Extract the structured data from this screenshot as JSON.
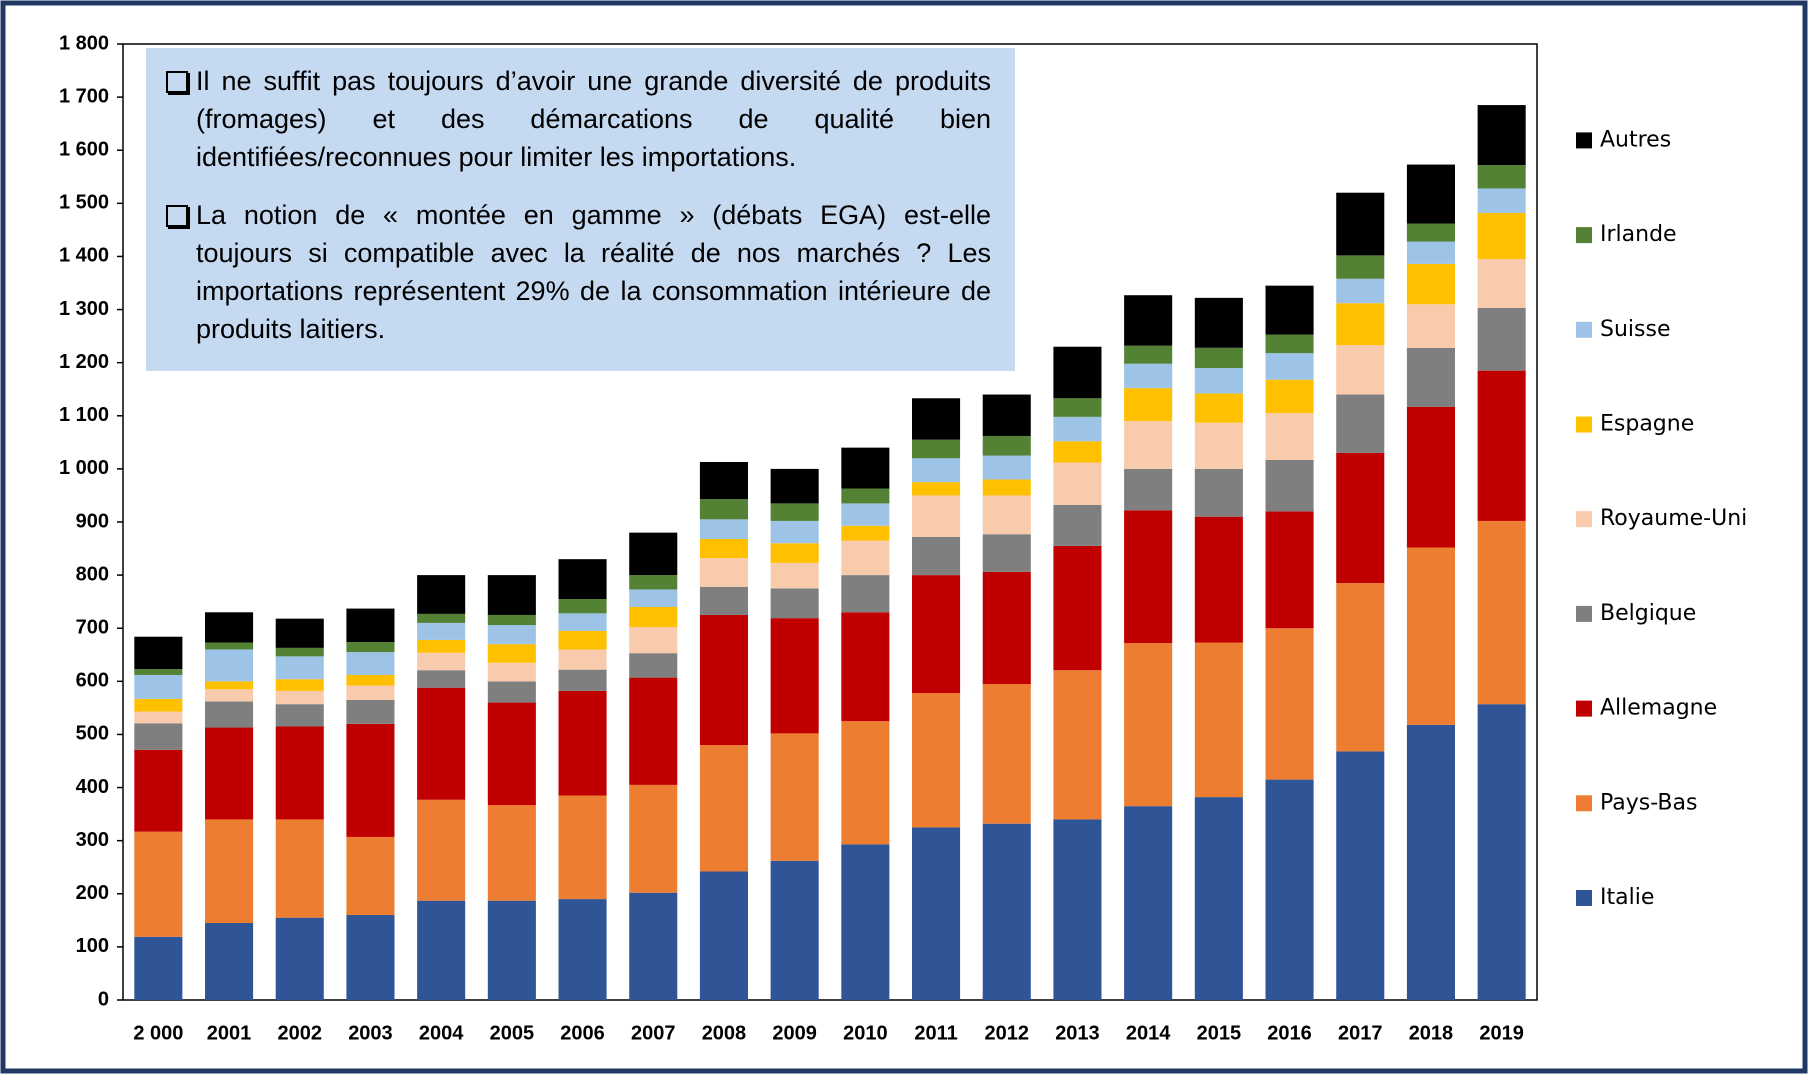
{
  "chart_data": {
    "type": "stacked-bar",
    "annotations": [
      "Il ne suffit pas toujours d’avoir une grande diversité de produits (fromages) et des démarcations de qualité bien identifiées/reconnues pour limiter les importations.",
      "La notion de « montée en gamme » (débats EGA) est-elle toujours si compatible avec la réalité de nos marchés ? Les importations représentent 29% de la consommation intérieure de produits laitiers."
    ],
    "categories": [
      "2 000",
      "2001",
      "2002",
      "2003",
      "2004",
      "2005",
      "2006",
      "2007",
      "2008",
      "2009",
      "2010",
      "2011",
      "2012",
      "2013",
      "2014",
      "2015",
      "2016",
      "2017",
      "2018",
      "2019"
    ],
    "series": [
      {
        "name": "Italie",
        "color": "#2f5597",
        "values": [
          119,
          145,
          155,
          160,
          187,
          187,
          190,
          202,
          242,
          262,
          293,
          325,
          332,
          340,
          365,
          382,
          415,
          468,
          518,
          557
        ]
      },
      {
        "name": "Pays-Bas",
        "color": "#ed7d31",
        "values": [
          198,
          195,
          185,
          147,
          190,
          180,
          195,
          203,
          238,
          240,
          232,
          253,
          263,
          281,
          307,
          291,
          285,
          317,
          334,
          345
        ]
      },
      {
        "name": "Allemagne",
        "color": "#c00000",
        "values": [
          154,
          173,
          175,
          213,
          211,
          193,
          197,
          202,
          245,
          217,
          205,
          222,
          211,
          234,
          250,
          237,
          220,
          245,
          265,
          283
        ]
      },
      {
        "name": "Belgique",
        "color": "#7f7f7f",
        "values": [
          50,
          49,
          42,
          45,
          33,
          40,
          40,
          46,
          53,
          56,
          70,
          72,
          71,
          77,
          78,
          90,
          97,
          110,
          111,
          118
        ]
      },
      {
        "name": "Royaume-Uni",
        "color": "#f8cbad",
        "values": [
          22,
          23,
          25,
          27,
          33,
          35,
          38,
          49,
          54,
          48,
          65,
          78,
          73,
          80,
          90,
          87,
          88,
          93,
          82,
          92
        ]
      },
      {
        "name": "Espagne",
        "color": "#ffc000",
        "values": [
          24,
          15,
          22,
          20,
          24,
          35,
          35,
          38,
          36,
          37,
          28,
          25,
          30,
          40,
          62,
          55,
          63,
          79,
          76,
          87
        ]
      },
      {
        "name": "Suisse",
        "color": "#9dc3e6",
        "values": [
          45,
          60,
          43,
          43,
          32,
          36,
          33,
          33,
          37,
          42,
          42,
          45,
          45,
          46,
          46,
          48,
          50,
          46,
          42,
          46
        ]
      },
      {
        "name": "Irlande",
        "color": "#548235",
        "values": [
          11,
          13,
          16,
          19,
          17,
          19,
          27,
          27,
          38,
          33,
          28,
          35,
          37,
          35,
          34,
          38,
          35,
          44,
          34,
          44
        ]
      },
      {
        "name": "Autres",
        "color": "#000000",
        "values": [
          61,
          57,
          55,
          63,
          73,
          75,
          75,
          80,
          70,
          65,
          77,
          78,
          78,
          97,
          95,
          94,
          92,
          118,
          111,
          113
        ]
      }
    ],
    "ylim": [
      0,
      1800
    ],
    "yticks": [
      0,
      100,
      200,
      300,
      400,
      500,
      600,
      700,
      800,
      900,
      {
        "value": 1000,
        "label": "1 000"
      },
      {
        "value": 1100,
        "label": "1 100"
      },
      {
        "value": 1200,
        "label": "1 200"
      },
      {
        "value": 1300,
        "label": "1 300"
      },
      {
        "value": 1400,
        "label": "1 400"
      },
      {
        "value": 1500,
        "label": "1 500"
      },
      {
        "value": 1600,
        "label": "1 600"
      },
      {
        "value": 1700,
        "label": "1 700"
      },
      {
        "value": 1800,
        "label": "1 800"
      }
    ],
    "legend": "right"
  }
}
